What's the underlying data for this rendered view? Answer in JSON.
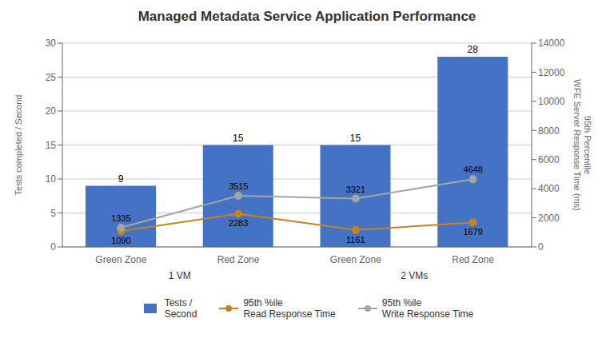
{
  "chart_data": {
    "type": "bar",
    "title": "Managed Metadata Service Application Performance",
    "categories": [
      "Green Zone",
      "Red Zone",
      "Green Zone",
      "Red Zone"
    ],
    "group_labels": [
      "1 VM",
      "2 VMs"
    ],
    "ylabel": "Tests completed / Second",
    "y2label": "95th Percentile\nWFE Server Response Time (ms)",
    "ylim": [
      0,
      30
    ],
    "yticks": [
      0,
      5,
      10,
      15,
      20,
      25,
      30
    ],
    "y2lim": [
      0,
      14000
    ],
    "y2ticks": [
      0,
      2000,
      4000,
      6000,
      8000,
      10000,
      12000,
      14000
    ],
    "grid": true,
    "data_labels": true,
    "series": [
      {
        "name": "Tests /\nSecond",
        "type": "bar",
        "color": "#4472C4",
        "values": [
          9,
          15,
          15,
          28
        ]
      },
      {
        "name": "95th %ile\nRead Response Time",
        "type": "line",
        "axis": "y2",
        "color": "#C9821A",
        "marker": "circle",
        "line_style": "solid",
        "values": [
          1090,
          2283,
          1161,
          1679
        ]
      },
      {
        "name": "95th %ile\nWrite Response Time",
        "type": "line",
        "axis": "y2",
        "color": "#A5A5A5",
        "marker": "circle",
        "line_style": "solid",
        "values": [
          1335,
          3515,
          3321,
          4648
        ]
      }
    ]
  }
}
